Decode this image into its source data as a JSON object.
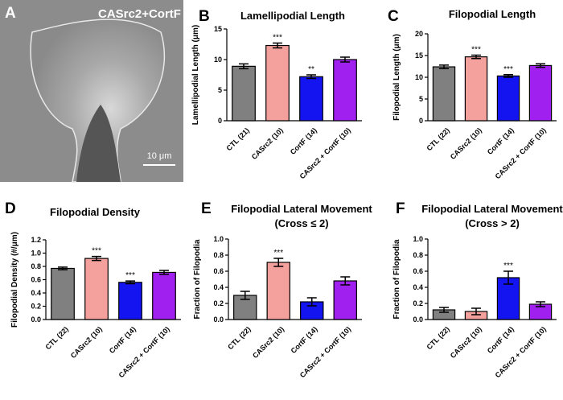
{
  "image_panel": {
    "panel_label": "A",
    "caption": "CASrc2+CortF",
    "scale_bar": "10 μm"
  },
  "chart_data": [
    {
      "type": "bar",
      "panel_label": "B",
      "title": "Lamellipodial Length",
      "y_label": "Lamellipodial Length (μm)",
      "categories": [
        "CTL (21)",
        "CASrc2 (10)",
        "CortF (14)",
        "CASrc2 + CortF (10)"
      ],
      "values": [
        8.9,
        12.3,
        7.2,
        10.0
      ],
      "errors": [
        0.4,
        0.4,
        0.3,
        0.4
      ],
      "significance": [
        null,
        "***",
        "**",
        null
      ],
      "colors": [
        "#808080",
        "#f4a09c",
        "#1414f0",
        "#a020f0"
      ],
      "ylim": [
        0,
        15
      ],
      "yticks": [
        0,
        5,
        10,
        15
      ]
    },
    {
      "type": "bar",
      "panel_label": "C",
      "title": "Filopodial Length",
      "y_label": "Filopodial Length (μm)",
      "categories": [
        "CTL (22)",
        "CASrc2 (10)",
        "CortF (14)",
        "CASrc2 + CortF (10)"
      ],
      "values": [
        12.4,
        14.7,
        10.3,
        12.7
      ],
      "errors": [
        0.4,
        0.4,
        0.3,
        0.4
      ],
      "significance": [
        null,
        "***",
        "***",
        null
      ],
      "colors": [
        "#808080",
        "#f4a09c",
        "#1414f0",
        "#a020f0"
      ],
      "ylim": [
        0,
        20
      ],
      "yticks": [
        0,
        5,
        10,
        15,
        20
      ]
    },
    {
      "type": "bar",
      "panel_label": "D",
      "title": "Filopodial Density",
      "y_label": "Filopodial Density (#/μm)",
      "categories": [
        "CTL (22)",
        "CASrc2 (10)",
        "CortF (14)",
        "CASrc2 + CortF (10)"
      ],
      "values": [
        0.77,
        0.92,
        0.56,
        0.71
      ],
      "errors": [
        0.02,
        0.03,
        0.02,
        0.03
      ],
      "significance": [
        null,
        "***",
        "***",
        null
      ],
      "colors": [
        "#808080",
        "#f4a09c",
        "#1414f0",
        "#a020f0"
      ],
      "ylim": [
        0,
        1.2
      ],
      "yticks": [
        {
          "value": 0,
          "label": "0.0"
        },
        0.2,
        0.4,
        0.6,
        0.8,
        {
          "value": 1,
          "label": "1.0"
        },
        1.2
      ]
    },
    {
      "type": "bar",
      "panel_label": "E",
      "title": "Filopodial Lateral Movement",
      "subtitle": "(Cross ≤ 2)",
      "y_label": "Fraction of Filopodia",
      "categories": [
        "CTL (22)",
        "CASrc2 (10)",
        "CortF (14)",
        "CASrc2 + CortF (10)"
      ],
      "values": [
        0.3,
        0.71,
        0.22,
        0.48
      ],
      "errors": [
        0.05,
        0.05,
        0.05,
        0.05
      ],
      "significance": [
        null,
        "***",
        null,
        null
      ],
      "colors": [
        "#808080",
        "#f4a09c",
        "#1414f0",
        "#a020f0"
      ],
      "ylim": [
        0,
        1
      ],
      "yticks": [
        {
          "value": 0,
          "label": "0.0"
        },
        0.2,
        0.4,
        0.6,
        0.8,
        {
          "value": 1,
          "label": "1.0"
        }
      ]
    },
    {
      "type": "bar",
      "panel_label": "F",
      "title": "Filopodial Lateral Movement",
      "subtitle": "(Cross > 2)",
      "y_label": "Fraction of Filopodia",
      "categories": [
        "CTL (22)",
        "CASrc2 (10)",
        "CortF (14)",
        "CASrc2 + CortF (10)"
      ],
      "values": [
        0.12,
        0.1,
        0.52,
        0.19
      ],
      "errors": [
        0.03,
        0.04,
        0.08,
        0.03
      ],
      "significance": [
        null,
        null,
        "***",
        null
      ],
      "colors": [
        "#808080",
        "#f4a09c",
        "#1414f0",
        "#a020f0"
      ],
      "ylim": [
        0,
        1
      ],
      "yticks": [
        {
          "value": 0,
          "label": "0.0"
        },
        0.2,
        0.4,
        0.6,
        0.8,
        {
          "value": 1,
          "label": "1.0"
        }
      ]
    }
  ]
}
